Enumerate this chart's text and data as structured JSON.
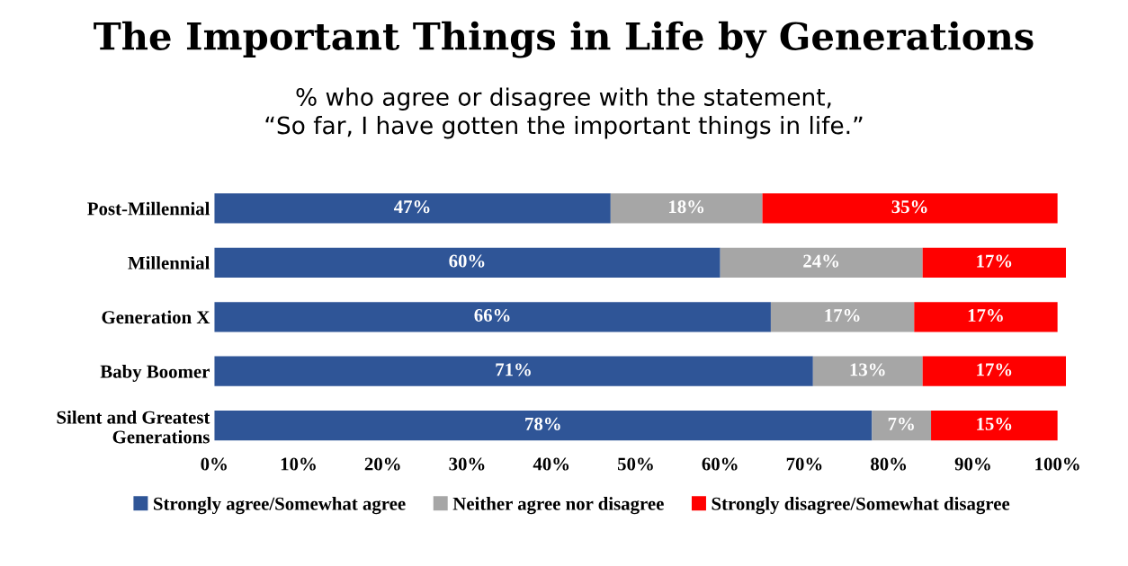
{
  "chart_data": {
    "type": "bar",
    "orientation": "horizontal",
    "stacked": true,
    "title": "The Important Things in Life by Generations",
    "subtitle": "% who agree or disagree with the statement,\n“So far, I have gotten the important things in life.”",
    "categories": [
      "Post-Millennial",
      "Millennial",
      "Generation X",
      "Baby Boomer",
      "Silent and Greatest\nGenerations"
    ],
    "series": [
      {
        "name": "Strongly agree/Somewhat agree",
        "color": "#2f5597",
        "values": [
          47,
          60,
          66,
          71,
          78
        ],
        "value_labels": [
          "47%",
          "60%",
          "66%",
          "71%",
          "78%"
        ]
      },
      {
        "name": "Neither agree nor disagree",
        "color": "#a6a6a6",
        "values": [
          18,
          24,
          17,
          13,
          7
        ],
        "value_labels": [
          "18%",
          "24%",
          "17%",
          "13%",
          "7%"
        ]
      },
      {
        "name": "Strongly disagree/Somewhat disagree",
        "color": "#ff0000",
        "values": [
          35,
          17,
          17,
          17,
          15
        ],
        "value_labels": [
          "35%",
          "17%",
          "17%",
          "17%",
          "15%"
        ]
      }
    ],
    "xlim": [
      0,
      101
    ],
    "xticks": [
      {
        "value": 0,
        "label": "0%"
      },
      {
        "value": 10,
        "label": "10%"
      },
      {
        "value": 20,
        "label": "20%"
      },
      {
        "value": 30,
        "label": "30%"
      },
      {
        "value": 40,
        "label": "40%"
      },
      {
        "value": 50,
        "label": "50%"
      },
      {
        "value": 60,
        "label": "60%"
      },
      {
        "value": 70,
        "label": "70%"
      },
      {
        "value": 80,
        "label": "80%"
      },
      {
        "value": 90,
        "label": "90%"
      },
      {
        "value": 100,
        "label": "100%"
      }
    ],
    "legend": "bottom",
    "grid": false
  }
}
